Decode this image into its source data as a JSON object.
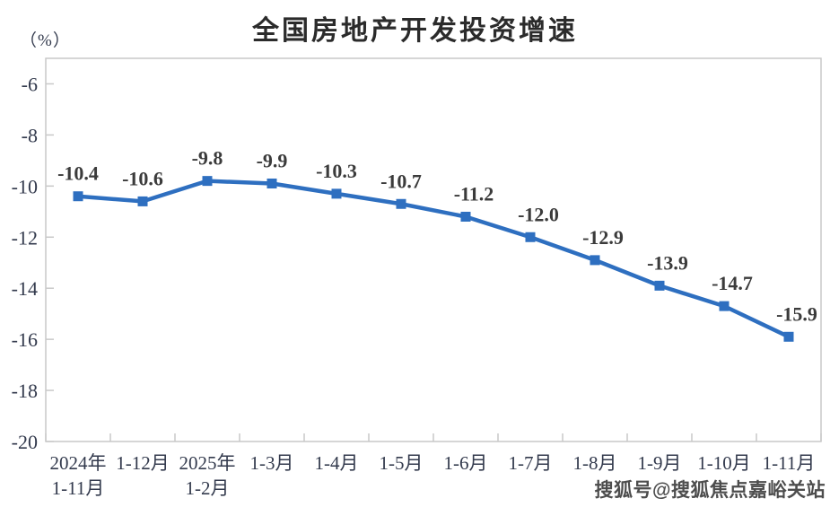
{
  "title": "全国房地产开发投资增速",
  "unit_label": "（%）",
  "watermark": "搜狐号@搜狐焦点嘉峪关站",
  "chart_data": {
    "type": "line",
    "title": "全国房地产开发投资增速",
    "ylabel": "（%）",
    "xlabel": "",
    "categories": [
      [
        "2024年",
        "1-11月"
      ],
      [
        "1-12月"
      ],
      [
        "2025年",
        "1-2月"
      ],
      [
        "1-3月"
      ],
      [
        "1-4月"
      ],
      [
        "1-5月"
      ],
      [
        "1-6月"
      ],
      [
        "1-7月"
      ],
      [
        "1-8月"
      ],
      [
        "1-9月"
      ],
      [
        "1-10月"
      ],
      [
        "1-11月"
      ]
    ],
    "series": [
      {
        "name": "全国房地产开发投资增速",
        "values": [
          -10.4,
          -10.6,
          -9.8,
          -9.9,
          -10.3,
          -10.7,
          -11.2,
          -12.0,
          -12.9,
          -13.9,
          -14.7,
          -15.9
        ],
        "data_labels": [
          "-10.4",
          "-10.6",
          "-9.8",
          "-9.9",
          "-10.3",
          "-10.7",
          "-11.2",
          "-12.0",
          "-12.9",
          "-13.9",
          "-14.7",
          "-15.9"
        ]
      }
    ],
    "yticks": [
      -6,
      -8,
      -10,
      -12,
      -14,
      -16,
      -18,
      -20
    ],
    "ylim": [
      -20,
      -5
    ],
    "grid": false,
    "legend_position": "none",
    "marker": "square",
    "colors": {
      "line": "#2e6fc0",
      "marker": "#2e6fc0",
      "frame": "#c9c9c9",
      "tick_label": "#333a4d",
      "data_label": "#3b3b3b"
    }
  }
}
